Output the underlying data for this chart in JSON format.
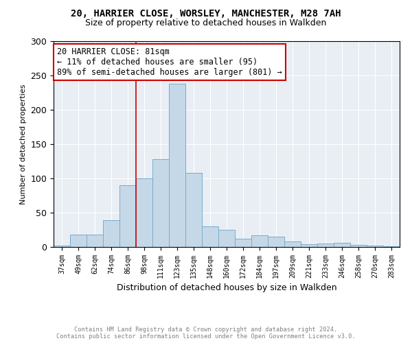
{
  "title": "20, HARRIER CLOSE, WORSLEY, MANCHESTER, M28 7AH",
  "subtitle": "Size of property relative to detached houses in Walkden",
  "xlabel": "Distribution of detached houses by size in Walkden",
  "ylabel": "Number of detached properties",
  "footer_line1": "Contains HM Land Registry data © Crown copyright and database right 2024.",
  "footer_line2": "Contains public sector information licensed under the Open Government Licence v3.0.",
  "bin_labels": [
    "37sqm",
    "49sqm",
    "62sqm",
    "74sqm",
    "86sqm",
    "98sqm",
    "111sqm",
    "123sqm",
    "135sqm",
    "148sqm",
    "160sqm",
    "172sqm",
    "184sqm",
    "197sqm",
    "209sqm",
    "221sqm",
    "233sqm",
    "246sqm",
    "258sqm",
    "270sqm",
    "283sqm"
  ],
  "bar_values": [
    2,
    18,
    18,
    39,
    90,
    100,
    128,
    238,
    108,
    30,
    25,
    12,
    17,
    15,
    8,
    4,
    5,
    6,
    3,
    2,
    1
  ],
  "bar_color": "#c5d8e8",
  "bar_edge_color": "#7aabcc",
  "annotation_text": "20 HARRIER CLOSE: 81sqm\n← 11% of detached houses are smaller (95)\n89% of semi-detached houses are larger (801) →",
  "annotation_box_color": "#ffffff",
  "annotation_box_edge": "#cc0000",
  "vline_x": 4.5,
  "ylim": [
    0,
    300
  ],
  "yticks": [
    0,
    50,
    100,
    150,
    200,
    250,
    300
  ],
  "background_color": "#e8eef4"
}
